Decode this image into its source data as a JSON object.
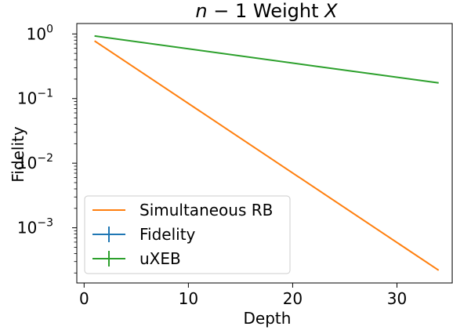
{
  "chart_data": {
    "type": "line",
    "title_parts": [
      "n",
      " − 1 Weight ",
      "X"
    ],
    "xlabel": "Depth",
    "ylabel": "Fidelity",
    "xlim": [
      -0.7,
      35.3
    ],
    "ylim": [
      0.00014,
      1.45
    ],
    "yscale": "log",
    "xticks": [
      0,
      10,
      20,
      30
    ],
    "xtick_labels": [
      "0",
      "10",
      "20",
      "30"
    ],
    "yticks": [
      1,
      0.1,
      0.01,
      0.001
    ],
    "ytick_bases": [
      "10",
      "10",
      "10",
      "10"
    ],
    "ytick_exps": [
      "0",
      "−1",
      "−2",
      "−3"
    ],
    "legend_placement": "lower-left",
    "series": [
      {
        "name": "Simultaneous RB",
        "color": "#ff7f0e",
        "style": "line",
        "x": [
          1,
          34
        ],
        "y": [
          0.78,
          0.00022
        ]
      },
      {
        "name": "Fidelity",
        "color": "#1f77b4",
        "style": "errorbar",
        "x": [],
        "y": []
      },
      {
        "name": "uXEB",
        "color": "#2ca02c",
        "style": "errorbar",
        "x": [
          1,
          22,
          34
        ],
        "y": [
          0.93,
          0.32,
          0.175
        ]
      }
    ]
  }
}
